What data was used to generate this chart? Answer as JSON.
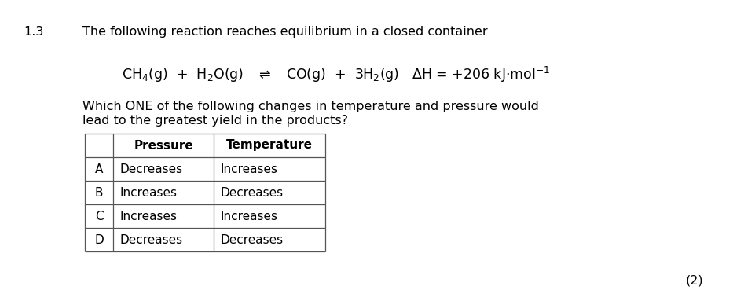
{
  "question_number": "1.3",
  "heading": "The following reaction reaches equilibrium in a closed container",
  "subquestion_line1": "Which ONE of the following changes in temperature and pressure would",
  "subquestion_line2": "lead to the greatest yield in the products?",
  "marks": "(2)",
  "table_header_col1": "Pressure",
  "table_header_col2": "Temperature",
  "table_rows": [
    [
      "A",
      "Decreases",
      "Increases"
    ],
    [
      "B",
      "Increases",
      "Decreases"
    ],
    [
      "C",
      "Increases",
      "Increases"
    ],
    [
      "D",
      "Decreases",
      "Decreases"
    ]
  ],
  "background_color": "#ffffff",
  "text_color": "#000000",
  "font_size_main": 11.5,
  "font_size_equation": 12.5,
  "font_size_table": 11.0,
  "font_size_marks": 11.5,
  "fig_width": 9.33,
  "fig_height": 3.83,
  "dpi": 100
}
